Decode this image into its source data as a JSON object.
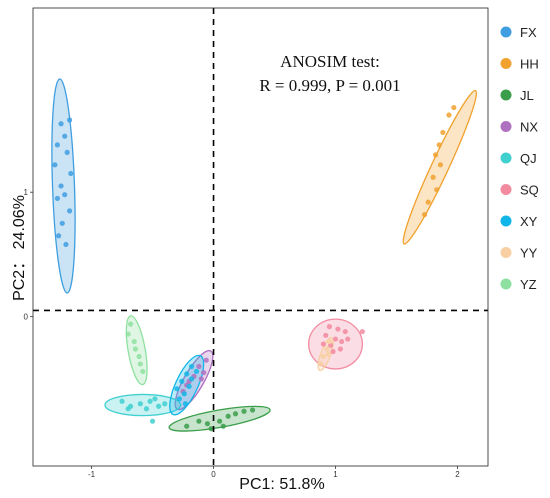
{
  "chart_data": {
    "type": "scatter",
    "title": "",
    "xlabel": "PC1: 51.8%",
    "ylabel": "PC2： 24.06%",
    "xlim": [
      -1.48,
      2.25
    ],
    "ylim": [
      -1.2,
      2.48
    ],
    "xticks": [
      {
        "value": -1,
        "label": "-1"
      },
      {
        "value": 0,
        "label": "0"
      },
      {
        "value": 1,
        "label": "1"
      },
      {
        "value": 2,
        "label": "2"
      }
    ],
    "yticks": [
      {
        "value": 0,
        "label": "0"
      },
      {
        "value": 1,
        "label": "1"
      }
    ],
    "grid": false,
    "legend_position": "right",
    "annotation": {
      "line1": "ANOSIM test:",
      "line2": "R = 0.999, P = 0.001"
    },
    "reference_lines": {
      "x": 0,
      "y": 0.05
    },
    "series": [
      {
        "name": "FX",
        "color": "#3f9ee0",
        "ellipse": {
          "cx": -1.23,
          "cy": 1.05,
          "rx": 0.09,
          "ry": 0.86,
          "angle_deg": -2
        },
        "points": [
          [
            -1.25,
            1.55
          ],
          [
            -1.18,
            1.58
          ],
          [
            -1.22,
            1.45
          ],
          [
            -1.28,
            1.38
          ],
          [
            -1.2,
            1.32
          ],
          [
            -1.3,
            1.22
          ],
          [
            -1.17,
            1.15
          ],
          [
            -1.25,
            1.05
          ],
          [
            -1.22,
            0.98
          ],
          [
            -1.28,
            0.95
          ],
          [
            -1.18,
            0.85
          ],
          [
            -1.24,
            0.75
          ],
          [
            -1.27,
            0.65
          ],
          [
            -1.21,
            0.58
          ]
        ]
      },
      {
        "name": "HH",
        "color": "#f0a12e",
        "ellipse": {
          "cx": 1.855,
          "cy": 1.2,
          "rx": 0.07,
          "ry": 0.68,
          "angle_deg": 25
        },
        "points": [
          [
            1.97,
            1.68
          ],
          [
            1.93,
            1.62
          ],
          [
            1.88,
            1.48
          ],
          [
            1.85,
            1.38
          ],
          [
            1.82,
            1.3
          ],
          [
            1.86,
            1.22
          ],
          [
            1.8,
            1.12
          ],
          [
            1.83,
            1.02
          ],
          [
            1.76,
            0.92
          ],
          [
            1.73,
            0.82
          ]
        ]
      },
      {
        "name": "JL",
        "color": "#3a9e4a",
        "ellipse": {
          "cx": 0.05,
          "cy": -0.82,
          "rx": 0.42,
          "ry": 0.07,
          "angle_deg": -10
        },
        "points": [
          [
            -0.22,
            -0.88
          ],
          [
            -0.12,
            -0.84
          ],
          [
            -0.05,
            -0.86
          ],
          [
            0.05,
            -0.84
          ],
          [
            0.12,
            -0.8
          ],
          [
            0.18,
            -0.78
          ],
          [
            0.25,
            -0.76
          ],
          [
            0.32,
            -0.75
          ],
          [
            -0.02,
            -0.9
          ],
          [
            0.08,
            -0.88
          ]
        ]
      },
      {
        "name": "NX",
        "color": "#b070c0",
        "ellipse": {
          "cx": -0.16,
          "cy": -0.51,
          "rx": 0.08,
          "ry": 0.27,
          "angle_deg": 30
        },
        "points": [
          [
            -0.06,
            -0.35
          ],
          [
            -0.12,
            -0.4
          ],
          [
            -0.08,
            -0.45
          ],
          [
            -0.16,
            -0.48
          ],
          [
            -0.2,
            -0.52
          ],
          [
            -0.22,
            -0.55
          ],
          [
            -0.25,
            -0.6
          ],
          [
            -0.1,
            -0.5
          ]
        ]
      },
      {
        "name": "QJ",
        "color": "#40d0d0",
        "ellipse": {
          "cx": -0.58,
          "cy": -0.71,
          "rx": 0.31,
          "ry": 0.085,
          "angle_deg": 0
        },
        "points": [
          [
            -0.75,
            -0.68
          ],
          [
            -0.68,
            -0.72
          ],
          [
            -0.6,
            -0.7
          ],
          [
            -0.52,
            -0.68
          ],
          [
            -0.45,
            -0.72
          ],
          [
            -0.4,
            -0.7
          ],
          [
            -0.7,
            -0.74
          ],
          [
            -0.55,
            -0.74
          ],
          [
            -0.48,
            -0.66
          ],
          [
            -0.5,
            -0.84
          ]
        ]
      },
      {
        "name": "SQ",
        "color": "#f28aa0",
        "ellipse": {
          "cx": 1.0,
          "cy": -0.22,
          "rx": 0.22,
          "ry": 0.2,
          "angle_deg": 0
        },
        "points": [
          [
            0.95,
            -0.08
          ],
          [
            1.02,
            -0.1
          ],
          [
            1.08,
            -0.12
          ],
          [
            0.92,
            -0.15
          ],
          [
            1.0,
            -0.18
          ],
          [
            1.05,
            -0.2
          ],
          [
            0.96,
            -0.23
          ],
          [
            1.1,
            -0.18
          ],
          [
            0.98,
            -0.28
          ],
          [
            1.04,
            -0.26
          ],
          [
            0.9,
            -0.22
          ],
          [
            1.22,
            -0.12
          ]
        ]
      },
      {
        "name": "XY",
        "color": "#10b6e8",
        "ellipse": {
          "cx": -0.22,
          "cy": -0.55,
          "rx": 0.09,
          "ry": 0.26,
          "angle_deg": 25
        },
        "points": [
          [
            -0.18,
            -0.4
          ],
          [
            -0.22,
            -0.46
          ],
          [
            -0.26,
            -0.52
          ],
          [
            -0.2,
            -0.56
          ],
          [
            -0.24,
            -0.62
          ],
          [
            -0.28,
            -0.66
          ],
          [
            -0.18,
            -0.5
          ],
          [
            -0.14,
            -0.44
          ],
          [
            -0.3,
            -0.58
          ],
          [
            -0.23,
            -0.7
          ]
        ]
      },
      {
        "name": "YY",
        "color": "#f7cfa2",
        "ellipse": {
          "cx": 0.92,
          "cy": -0.3,
          "rx": 0.04,
          "ry": 0.14,
          "angle_deg": 20
        },
        "points": [
          [
            0.95,
            -0.2
          ],
          [
            0.93,
            -0.26
          ],
          [
            0.9,
            -0.32
          ],
          [
            0.88,
            -0.38
          ],
          [
            0.94,
            -0.3
          ]
        ]
      },
      {
        "name": "YZ",
        "color": "#8ee0a0",
        "ellipse": {
          "cx": -0.63,
          "cy": -0.27,
          "rx": 0.07,
          "ry": 0.28,
          "angle_deg": -10
        },
        "points": [
          [
            -0.68,
            -0.06
          ],
          [
            -0.7,
            -0.14
          ],
          [
            -0.65,
            -0.2
          ],
          [
            -0.64,
            -0.26
          ],
          [
            -0.61,
            -0.32
          ],
          [
            -0.6,
            -0.38
          ],
          [
            -0.58,
            -0.44
          ]
        ]
      }
    ]
  }
}
